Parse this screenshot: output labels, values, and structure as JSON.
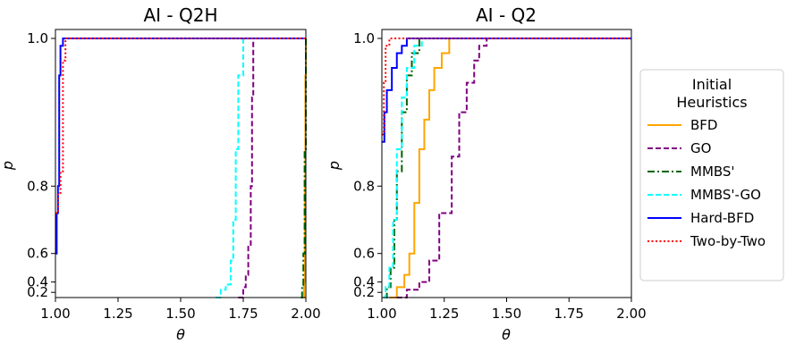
{
  "chart_data": [
    {
      "type": "line",
      "title": "AI - Q2H",
      "xlabel": "θ",
      "ylabel": "p",
      "xlim": [
        1.0,
        2.0
      ],
      "ylim": [
        0.17,
        1.0
      ],
      "y_scale": "piecewise",
      "xticks": [
        1.0,
        1.25,
        1.5,
        1.75,
        2.0
      ],
      "xtick_labels": [
        "1.00",
        "1.25",
        "1.50",
        "1.75",
        "2.00"
      ],
      "yticks": [
        0.2,
        0.4,
        0.6,
        0.8,
        1.0
      ],
      "ytick_labels": [
        "0.2",
        "0.4",
        "0.6",
        "0.8",
        "1.0"
      ],
      "grid": false,
      "series": [
        {
          "name": "BFD",
          "points": [
            [
              1.99,
              0.17
            ],
            [
              1.993,
              0.4
            ],
            [
              1.996,
              0.8
            ],
            [
              1.998,
              0.95
            ],
            [
              2.0,
              1.0
            ]
          ]
        },
        {
          "name": "GO",
          "points": [
            [
              1.73,
              0.17
            ],
            [
              1.75,
              0.3
            ],
            [
              1.76,
              0.45
            ],
            [
              1.77,
              0.62
            ],
            [
              1.78,
              0.8
            ],
            [
              1.785,
              0.92
            ],
            [
              1.79,
              1.0
            ],
            [
              2.0,
              1.0
            ]
          ]
        },
        {
          "name": "MMBS'",
          "points": [
            [
              1.98,
              0.17
            ],
            [
              1.985,
              0.3
            ],
            [
              1.99,
              0.6
            ],
            [
              1.995,
              0.85
            ],
            [
              2.0,
              0.98
            ],
            [
              2.0,
              1.0
            ]
          ]
        },
        {
          "name": "MMBS'-GO",
          "points": [
            [
              1.64,
              0.17
            ],
            [
              1.66,
              0.25
            ],
            [
              1.68,
              0.35
            ],
            [
              1.7,
              0.55
            ],
            [
              1.71,
              0.7
            ],
            [
              1.72,
              0.85
            ],
            [
              1.73,
              0.95
            ],
            [
              1.75,
              1.0
            ],
            [
              2.0,
              1.0
            ]
          ]
        },
        {
          "name": "Hard-BFD",
          "points": [
            [
              1.0,
              0.6
            ],
            [
              1.005,
              0.72
            ],
            [
              1.01,
              0.8
            ],
            [
              1.015,
              0.95
            ],
            [
              1.02,
              0.99
            ],
            [
              1.03,
              1.0
            ],
            [
              2.0,
              1.0
            ]
          ]
        },
        {
          "name": "Two-by-Two",
          "points": [
            [
              1.0,
              0.72
            ],
            [
              1.01,
              0.78
            ],
            [
              1.02,
              0.82
            ],
            [
              1.03,
              0.97
            ],
            [
              1.04,
              1.0
            ],
            [
              2.0,
              1.0
            ]
          ]
        }
      ]
    },
    {
      "type": "line",
      "title": "AI - Q2",
      "xlabel": "θ",
      "ylabel": "p",
      "xlim": [
        1.0,
        2.0
      ],
      "ylim": [
        0.17,
        1.0
      ],
      "y_scale": "piecewise",
      "xticks": [
        1.0,
        1.25,
        1.5,
        1.75,
        2.0
      ],
      "xtick_labels": [
        "1.00",
        "1.25",
        "1.50",
        "1.75",
        "2.00"
      ],
      "yticks": [
        0.2,
        0.4,
        0.6,
        0.8,
        1.0
      ],
      "ytick_labels": [
        "0.2",
        "0.4",
        "0.6",
        "0.8",
        "1.0"
      ],
      "grid": false,
      "series": [
        {
          "name": "BFD",
          "points": [
            [
              1.03,
              0.17
            ],
            [
              1.06,
              0.3
            ],
            [
              1.09,
              0.45
            ],
            [
              1.11,
              0.6
            ],
            [
              1.13,
              0.75
            ],
            [
              1.15,
              0.85
            ],
            [
              1.17,
              0.89
            ],
            [
              1.19,
              0.93
            ],
            [
              1.21,
              0.96
            ],
            [
              1.24,
              0.98
            ],
            [
              1.27,
              1.0
            ],
            [
              2.0,
              1.0
            ]
          ]
        },
        {
          "name": "GO",
          "points": [
            [
              1.06,
              0.17
            ],
            [
              1.1,
              0.25
            ],
            [
              1.15,
              0.4
            ],
            [
              1.19,
              0.55
            ],
            [
              1.23,
              0.72
            ],
            [
              1.28,
              0.84
            ],
            [
              1.31,
              0.9
            ],
            [
              1.34,
              0.94
            ],
            [
              1.37,
              0.97
            ],
            [
              1.39,
              0.99
            ],
            [
              1.42,
              1.0
            ],
            [
              2.0,
              1.0
            ]
          ]
        },
        {
          "name": "MMBS'",
          "points": [
            [
              1.01,
              0.17
            ],
            [
              1.02,
              0.3
            ],
            [
              1.035,
              0.5
            ],
            [
              1.05,
              0.7
            ],
            [
              1.06,
              0.82
            ],
            [
              1.08,
              0.9
            ],
            [
              1.1,
              0.95
            ],
            [
              1.12,
              0.98
            ],
            [
              1.15,
              1.0
            ],
            [
              2.0,
              1.0
            ]
          ]
        },
        {
          "name": "MMBS'-GO",
          "points": [
            [
              1.005,
              0.17
            ],
            [
              1.015,
              0.3
            ],
            [
              1.03,
              0.5
            ],
            [
              1.045,
              0.7
            ],
            [
              1.06,
              0.85
            ],
            [
              1.08,
              0.92
            ],
            [
              1.1,
              0.96
            ],
            [
              1.13,
              0.99
            ],
            [
              1.16,
              1.0
            ],
            [
              2.0,
              1.0
            ]
          ]
        },
        {
          "name": "Hard-BFD",
          "points": [
            [
              1.0,
              0.86
            ],
            [
              1.01,
              0.9
            ],
            [
              1.02,
              0.93
            ],
            [
              1.04,
              0.96
            ],
            [
              1.06,
              0.98
            ],
            [
              1.08,
              0.99
            ],
            [
              1.1,
              1.0
            ],
            [
              2.0,
              1.0
            ]
          ]
        },
        {
          "name": "Two-by-Two",
          "points": [
            [
              1.0,
              0.87
            ],
            [
              1.008,
              0.94
            ],
            [
              1.015,
              0.99
            ],
            [
              1.03,
              1.0
            ],
            [
              2.0,
              1.0
            ]
          ]
        }
      ]
    }
  ],
  "legend": {
    "title_line1": "Initial",
    "title_line2": "Heuristics",
    "placement": "right",
    "items": [
      {
        "label": "BFD",
        "color": "#ffa500",
        "dash": "solid",
        "key": "bfd"
      },
      {
        "label": "GO",
        "color": "#800080",
        "dash": "dashed",
        "key": "go"
      },
      {
        "label": "MMBS'",
        "color": "#006400",
        "dash": "dashdot",
        "key": "mmbs"
      },
      {
        "label": "MMBS'-GO",
        "color": "#00ffff",
        "dash": "dashed",
        "key": "mmbs-go"
      },
      {
        "label": "Hard-BFD",
        "color": "#0000ff",
        "dash": "solid",
        "key": "hard-bfd"
      },
      {
        "label": "Two-by-Two",
        "color": "#ff0000",
        "dash": "dotted",
        "key": "two-by-two"
      }
    ]
  }
}
